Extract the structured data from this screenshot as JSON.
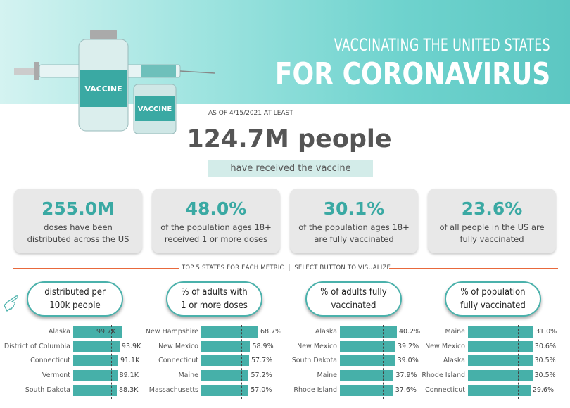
{
  "header": {
    "subtitle": "VACCINATING THE UNITED STATES",
    "title": "FOR CORONAVIRUS",
    "vial_label": "VACCINE",
    "vial_label_2": "VACCINE"
  },
  "as_of": "AS OF 4/15/2021 AT LEAST",
  "headline": "124.7M people",
  "headline_sub": "have received the vaccine",
  "cards": [
    {
      "value": "255.0M",
      "label1": "doses have been",
      "label2": "distributed across the US"
    },
    {
      "value": "48.0%",
      "label1": "of the population ages 18+",
      "label2": "received 1 or more doses"
    },
    {
      "value": "30.1%",
      "label1": "of the population ages 18+",
      "label2": "are fully vaccinated"
    },
    {
      "value": "23.6%",
      "label1": "of all people in the US are",
      "label2": "fully vaccinated"
    }
  ],
  "instruction": "TOP 5 STATES FOR EACH METRIC  |  SELECT BUTTON TO VISUALIZE",
  "colors": {
    "accent": "#46b0a9",
    "rule": "#e8693c"
  },
  "buttons": [
    {
      "line1": "distributed per",
      "line2": "100k people"
    },
    {
      "line1": "% of adults with",
      "line2": "1 or more doses"
    },
    {
      "line1": "% of adults fully",
      "line2": "vaccinated"
    },
    {
      "line1": "% of population",
      "line2": "fully vaccinated"
    }
  ],
  "chart_data": [
    {
      "type": "bar",
      "orientation": "horizontal",
      "categories": [
        "Alaska",
        "District of Columbia",
        "Connecticut",
        "Vermont",
        "South Dakota"
      ],
      "values": [
        99.7,
        93.9,
        91.1,
        89.1,
        88.3
      ],
      "labels": [
        "99.7K",
        "93.9K",
        "91.1K",
        "89.1K",
        "88.3K"
      ],
      "reference": 77,
      "unit": "K"
    },
    {
      "type": "bar",
      "orientation": "horizontal",
      "categories": [
        "New Hampshire",
        "New Mexico",
        "Connecticut",
        "Maine",
        "Massachusetts"
      ],
      "values": [
        68.7,
        58.9,
        57.7,
        57.2,
        57.0
      ],
      "labels": [
        "68.7%",
        "58.9%",
        "57.7%",
        "57.2%",
        "57.0%"
      ],
      "reference": 48.0,
      "unit": "%"
    },
    {
      "type": "bar",
      "orientation": "horizontal",
      "categories": [
        "Alaska",
        "New Mexico",
        "South Dakota",
        "Maine",
        "Rhode Island"
      ],
      "values": [
        40.2,
        39.2,
        39.0,
        37.9,
        37.6
      ],
      "labels": [
        "40.2%",
        "39.2%",
        "39.0%",
        "37.9%",
        "37.6%"
      ],
      "reference": 30.1,
      "unit": "%"
    },
    {
      "type": "bar",
      "orientation": "horizontal",
      "categories": [
        "Maine",
        "New Mexico",
        "Alaska",
        "Rhode Island",
        "Connecticut"
      ],
      "values": [
        31.0,
        30.6,
        30.5,
        30.5,
        29.6
      ],
      "labels": [
        "31.0%",
        "30.6%",
        "30.5%",
        "30.5%",
        "29.6%"
      ],
      "reference": 23.6,
      "unit": "%"
    }
  ]
}
